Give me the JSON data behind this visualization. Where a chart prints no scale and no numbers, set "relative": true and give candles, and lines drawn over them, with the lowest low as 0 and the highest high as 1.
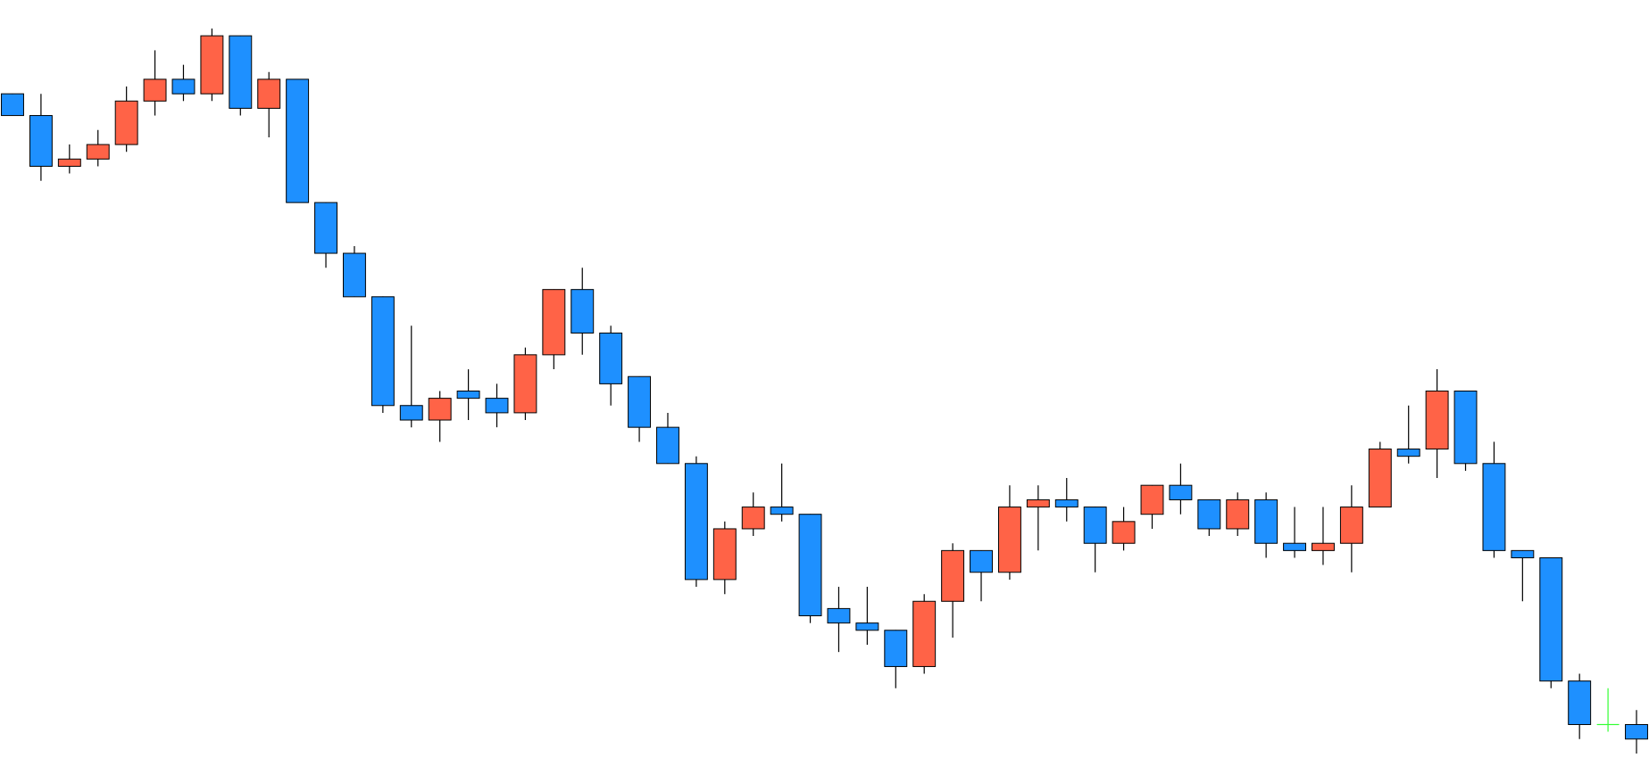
{
  "chart_data": {
    "type": "candlestick",
    "relative": true,
    "categories": [
      null,
      null,
      null,
      null,
      null,
      null,
      null,
      null,
      null,
      null,
      null,
      null,
      null,
      null,
      null,
      null,
      null,
      null,
      null,
      null,
      null,
      null,
      null,
      null,
      null,
      null,
      null,
      null,
      null,
      null,
      null,
      null,
      null,
      null,
      null,
      null,
      null,
      null,
      null,
      null,
      null,
      null,
      null,
      null,
      null,
      null,
      null,
      null,
      null,
      null,
      null,
      null,
      null,
      null,
      null,
      null,
      null,
      null
    ],
    "ohlc": [
      [
        0.91,
        0.91,
        0.88,
        0.88
      ],
      [
        0.88,
        0.91,
        0.79,
        0.81
      ],
      [
        0.81,
        0.84,
        0.8,
        0.82
      ],
      [
        0.82,
        0.86,
        0.81,
        0.84
      ],
      [
        0.84,
        0.92,
        0.83,
        0.9
      ],
      [
        0.9,
        0.97,
        0.88,
        0.93
      ],
      [
        0.93,
        0.95,
        0.9,
        0.91
      ],
      [
        0.91,
        1.0,
        0.9,
        0.99
      ],
      [
        0.99,
        0.99,
        0.88,
        0.89
      ],
      [
        0.89,
        0.94,
        0.85,
        0.93
      ],
      [
        0.93,
        0.93,
        0.76,
        0.76
      ],
      [
        0.76,
        0.76,
        0.67,
        0.69
      ],
      [
        0.69,
        0.7,
        0.63,
        0.63
      ],
      [
        0.63,
        0.63,
        0.47,
        0.48
      ],
      [
        0.48,
        0.59,
        0.45,
        0.46
      ],
      [
        0.46,
        0.5,
        0.43,
        0.49
      ],
      [
        0.5,
        0.53,
        0.46,
        0.49
      ],
      [
        0.49,
        0.51,
        0.45,
        0.47
      ],
      [
        0.47,
        0.56,
        0.46,
        0.55
      ],
      [
        0.55,
        0.64,
        0.53,
        0.64
      ],
      [
        0.64,
        0.67,
        0.55,
        0.58
      ],
      [
        0.58,
        0.59,
        0.48,
        0.51
      ],
      [
        0.52,
        0.52,
        0.43,
        0.45
      ],
      [
        0.45,
        0.47,
        0.4,
        0.4
      ],
      [
        0.4,
        0.41,
        0.23,
        0.24
      ],
      [
        0.24,
        0.32,
        0.22,
        0.31
      ],
      [
        0.31,
        0.36,
        0.3,
        0.34
      ],
      [
        0.34,
        0.4,
        0.32,
        0.33
      ],
      [
        0.33,
        0.33,
        0.18,
        0.19
      ],
      [
        0.2,
        0.23,
        0.14,
        0.18
      ],
      [
        0.18,
        0.23,
        0.15,
        0.17
      ],
      [
        0.17,
        0.17,
        0.09,
        0.12
      ],
      [
        0.12,
        0.22,
        0.11,
        0.21
      ],
      [
        0.21,
        0.29,
        0.16,
        0.28
      ],
      [
        0.28,
        0.28,
        0.21,
        0.25
      ],
      [
        0.25,
        0.37,
        0.24,
        0.34
      ],
      [
        0.34,
        0.37,
        0.28,
        0.35
      ],
      [
        0.35,
        0.38,
        0.32,
        0.34
      ],
      [
        0.34,
        0.34,
        0.25,
        0.29
      ],
      [
        0.29,
        0.34,
        0.28,
        0.32
      ],
      [
        0.33,
        0.37,
        0.31,
        0.37
      ],
      [
        0.37,
        0.4,
        0.33,
        0.35
      ],
      [
        0.35,
        0.35,
        0.3,
        0.31
      ],
      [
        0.31,
        0.36,
        0.3,
        0.35
      ],
      [
        0.35,
        0.36,
        0.27,
        0.29
      ],
      [
        0.29,
        0.34,
        0.27,
        0.28
      ],
      [
        0.28,
        0.34,
        0.26,
        0.29
      ],
      [
        0.29,
        0.37,
        0.25,
        0.34
      ],
      [
        0.34,
        0.43,
        0.34,
        0.42
      ],
      [
        0.42,
        0.48,
        0.4,
        0.41
      ],
      [
        0.42,
        0.53,
        0.38,
        0.5
      ],
      [
        0.5,
        0.5,
        0.39,
        0.4
      ],
      [
        0.4,
        0.43,
        0.27,
        0.28
      ],
      [
        0.28,
        0.28,
        0.21,
        0.27
      ],
      [
        0.27,
        0.27,
        0.09,
        0.1
      ],
      [
        0.1,
        0.11,
        0.02,
        0.04
      ],
      [
        0.04,
        0.09,
        0.03,
        0.04
      ],
      [
        0.04,
        0.06,
        0.0,
        0.02
      ]
    ],
    "colors": [
      "#1e90ff",
      "#1e90ff",
      "#ff6347",
      "#ff6347",
      "#ff6347",
      "#ff6347",
      "#1e90ff",
      "#ff6347",
      "#1e90ff",
      "#ff6347",
      "#1e90ff",
      "#1e90ff",
      "#1e90ff",
      "#1e90ff",
      "#1e90ff",
      "#ff6347",
      "#1e90ff",
      "#1e90ff",
      "#ff6347",
      "#ff6347",
      "#1e90ff",
      "#1e90ff",
      "#1e90ff",
      "#1e90ff",
      "#1e90ff",
      "#ff6347",
      "#ff6347",
      "#1e90ff",
      "#1e90ff",
      "#1e90ff",
      "#1e90ff",
      "#1e90ff",
      "#ff6347",
      "#ff6347",
      "#1e90ff",
      "#ff6347",
      "#ff6347",
      "#1e90ff",
      "#1e90ff",
      "#ff6347",
      "#ff6347",
      "#1e90ff",
      "#1e90ff",
      "#ff6347",
      "#1e90ff",
      "#1e90ff",
      "#ff6347",
      "#ff6347",
      "#ff6347",
      "#1e90ff",
      "#ff6347",
      "#1e90ff",
      "#1e90ff",
      "#1e90ff",
      "#1e90ff",
      "#1e90ff",
      "#33ff33",
      "#1e90ff"
    ]
  }
}
